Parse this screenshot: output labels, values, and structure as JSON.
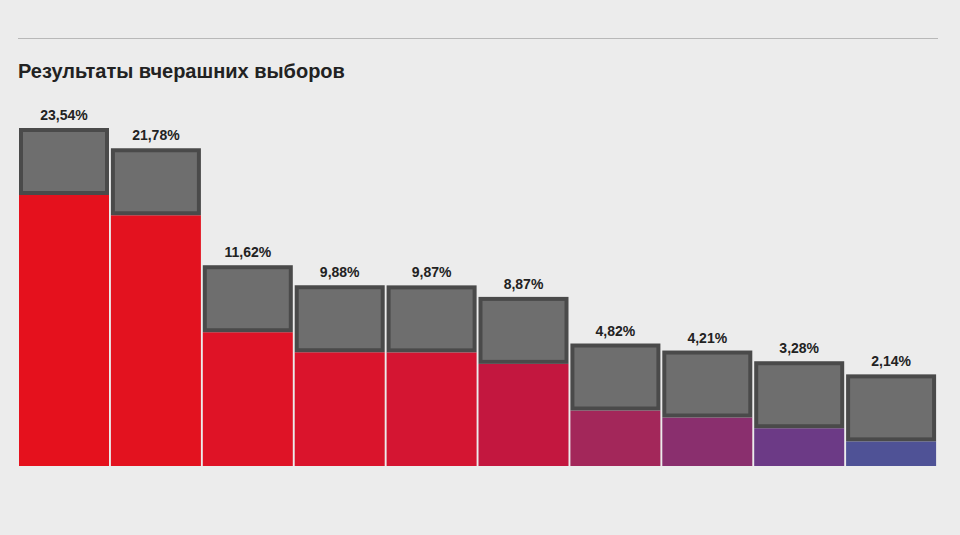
{
  "chart_data": {
    "type": "bar",
    "title": "Результаты вчерашних выборов",
    "categories": [
      null,
      null,
      null,
      null,
      null,
      null,
      null,
      null,
      null,
      null
    ],
    "values": [
      23.54,
      21.78,
      11.62,
      9.88,
      9.87,
      8.87,
      4.82,
      4.21,
      3.28,
      2.14
    ],
    "value_labels": [
      "23,54%",
      "21,78%",
      "11,62%",
      "9,88%",
      "9,87%",
      "8,87%",
      "4,82%",
      "4,21%",
      "3,28%",
      "2,14%"
    ],
    "colors": [
      "#e5111d",
      "#e3121f",
      "#df1326",
      "#da142c",
      "#d41532",
      "#c3173f",
      "#a3275a",
      "#8a2f6e",
      "#6c3a86",
      "#4f5296"
    ],
    "data_labels": true,
    "tick_labels": false,
    "grid": false
  }
}
